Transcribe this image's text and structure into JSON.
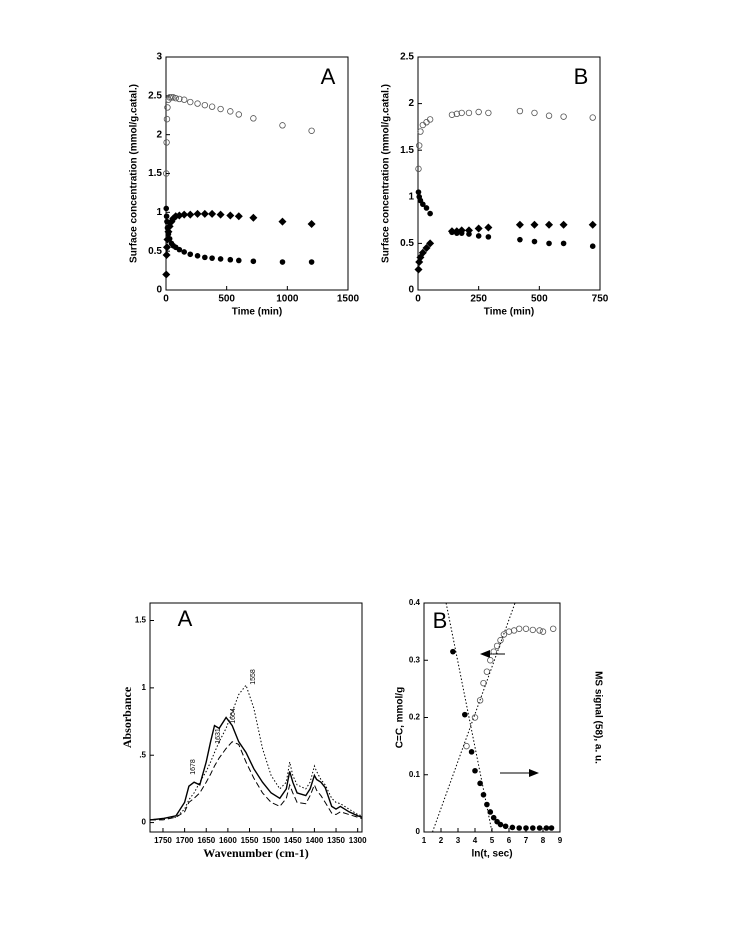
{
  "chart_data": [
    {
      "type": "scatter",
      "label": "A",
      "xlabel": "Time (min)",
      "ylabel": "Surface concentration (mmol/g.catal.)",
      "xlim": [
        0,
        1500
      ],
      "xticks": [
        0,
        500,
        1000,
        1500
      ],
      "ylim": [
        0,
        3
      ],
      "yticks": [
        0,
        0.5,
        1,
        1.5,
        2,
        2.5,
        3
      ],
      "x": [
        2,
        5,
        8,
        12,
        20,
        30,
        45,
        60,
        80,
        110,
        150,
        200,
        260,
        320,
        380,
        450,
        530,
        600,
        720,
        960,
        1200
      ],
      "series": [
        {
          "marker": "circle-open",
          "color": "#555555",
          "values": [
            1.5,
            1.9,
            2.2,
            2.35,
            2.45,
            2.48,
            2.48,
            2.48,
            2.47,
            2.46,
            2.45,
            2.42,
            2.4,
            2.38,
            2.36,
            2.33,
            2.3,
            2.26,
            2.21,
            2.12,
            2.05
          ]
        },
        {
          "marker": "diamond",
          "color": "#000000",
          "values": [
            0.2,
            0.45,
            0.55,
            0.65,
            0.75,
            0.82,
            0.88,
            0.92,
            0.95,
            0.96,
            0.97,
            0.97,
            0.98,
            0.98,
            0.98,
            0.97,
            0.96,
            0.95,
            0.93,
            0.88,
            0.85
          ]
        },
        {
          "marker": "circle",
          "color": "#000000",
          "values": [
            1.05,
            0.95,
            0.88,
            0.8,
            0.72,
            0.66,
            0.6,
            0.57,
            0.55,
            0.52,
            0.49,
            0.46,
            0.44,
            0.42,
            0.41,
            0.4,
            0.39,
            0.38,
            0.37,
            0.36,
            0.36
          ]
        }
      ]
    },
    {
      "type": "scatter",
      "label": "B",
      "xlabel": "Time (min)",
      "ylabel": "Surface concentration (mmol/g.catal.)",
      "xlim": [
        0,
        750
      ],
      "xticks": [
        0,
        250,
        500,
        750
      ],
      "ylim": [
        0,
        2.5
      ],
      "yticks": [
        0,
        0.5,
        1,
        1.5,
        2,
        2.5
      ],
      "x": [
        2,
        5,
        10,
        20,
        35,
        50,
        140,
        160,
        180,
        210,
        250,
        290,
        420,
        480,
        540,
        600,
        720
      ],
      "series": [
        {
          "marker": "circle-open",
          "color": "#555555",
          "values": [
            1.3,
            1.55,
            1.7,
            1.77,
            1.8,
            1.83,
            1.88,
            1.89,
            1.9,
            1.9,
            1.91,
            1.9,
            1.92,
            1.9,
            1.87,
            1.86,
            1.85
          ]
        },
        {
          "marker": "diamond",
          "color": "#000000",
          "values": [
            0.22,
            0.3,
            0.35,
            0.4,
            0.45,
            0.5,
            0.63,
            0.63,
            0.64,
            0.64,
            0.66,
            0.67,
            0.7,
            0.7,
            0.7,
            0.7,
            0.7
          ]
        },
        {
          "marker": "circle",
          "color": "#000000",
          "values": [
            1.05,
            1.0,
            0.96,
            0.92,
            0.88,
            0.82,
            0.62,
            0.61,
            0.61,
            0.6,
            0.58,
            0.57,
            0.54,
            0.52,
            0.5,
            0.5,
            0.47
          ]
        }
      ]
    },
    {
      "type": "line",
      "label": "A",
      "xlabel": "Wavenumber (cm-1)",
      "ylabel": "Absorbance",
      "xlim": [
        1780,
        1290
      ],
      "xticks": [
        1750,
        1700,
        1650,
        1600,
        1550,
        1500,
        1450,
        1400,
        1350,
        1300
      ],
      "ylim": [
        -0.07,
        1.63
      ],
      "yticks": [
        0,
        {
          "value": 0.5,
          "label": ".5"
        },
        1,
        1.5
      ],
      "annotations": [
        "1678",
        "1631",
        "1604",
        "1558"
      ],
      "x": [
        1780,
        1750,
        1720,
        1700,
        1690,
        1678,
        1665,
        1650,
        1640,
        1631,
        1620,
        1604,
        1590,
        1575,
        1558,
        1540,
        1520,
        1500,
        1480,
        1465,
        1457,
        1450,
        1440,
        1420,
        1410,
        1400,
        1395,
        1385,
        1375,
        1360,
        1350,
        1340,
        1320,
        1300,
        1290
      ],
      "series": [
        {
          "dash": "solid",
          "color": "#000000",
          "values": [
            0.02,
            0.03,
            0.05,
            0.15,
            0.27,
            0.3,
            0.28,
            0.45,
            0.6,
            0.72,
            0.7,
            0.78,
            0.72,
            0.6,
            0.52,
            0.4,
            0.3,
            0.22,
            0.18,
            0.25,
            0.38,
            0.3,
            0.22,
            0.2,
            0.25,
            0.35,
            0.32,
            0.3,
            0.26,
            0.12,
            0.1,
            0.12,
            0.08,
            0.05,
            0.04
          ]
        },
        {
          "dash": "dotted",
          "color": "#000000",
          "values": [
            0.02,
            0.03,
            0.04,
            0.1,
            0.17,
            0.22,
            0.3,
            0.38,
            0.45,
            0.52,
            0.6,
            0.7,
            0.82,
            0.95,
            1.02,
            0.85,
            0.55,
            0.35,
            0.25,
            0.3,
            0.45,
            0.35,
            0.28,
            0.25,
            0.3,
            0.42,
            0.38,
            0.32,
            0.28,
            0.18,
            0.15,
            0.14,
            0.1,
            0.06,
            0.05
          ]
        },
        {
          "dash": "dashed",
          "color": "#000000",
          "values": [
            0.02,
            0.02,
            0.04,
            0.08,
            0.15,
            0.18,
            0.22,
            0.3,
            0.36,
            0.42,
            0.48,
            0.55,
            0.6,
            0.58,
            0.45,
            0.33,
            0.22,
            0.15,
            0.12,
            0.18,
            0.28,
            0.22,
            0.15,
            0.14,
            0.2,
            0.28,
            0.24,
            0.2,
            0.15,
            0.07,
            0.06,
            0.08,
            0.06,
            0.04,
            0.03
          ]
        }
      ]
    },
    {
      "type": "scatter",
      "label": "B",
      "xlabel": "ln(t, sec)",
      "ylabel": "C=C, mmol/g",
      "y2label": "MS signal (58), a. u.",
      "xlim": [
        1,
        9
      ],
      "xticks": [
        1,
        2,
        3,
        4,
        5,
        6,
        7,
        8,
        9
      ],
      "ylim": [
        0,
        0.4
      ],
      "yticks": [
        0,
        0.1,
        0.2,
        0.3,
        0.4
      ],
      "series": [
        {
          "marker": "circle",
          "color": "#000000",
          "x": [
            2.7,
            3.4,
            3.8,
            4.0,
            4.3,
            4.5,
            4.7,
            4.9,
            5.1,
            5.3,
            5.5,
            5.8,
            6.2,
            6.6,
            7.0,
            7.4,
            7.8,
            8.2,
            8.5
          ],
          "values": [
            0.315,
            0.205,
            0.14,
            0.107,
            0.085,
            0.065,
            0.048,
            0.035,
            0.025,
            0.018,
            0.013,
            0.01,
            0.008,
            0.007,
            0.007,
            0.007,
            0.007,
            0.007,
            0.007
          ]
        },
        {
          "marker": "circle-open",
          "color": "#555555",
          "x": [
            3.5,
            4.0,
            4.3,
            4.5,
            4.7,
            4.9,
            5.1,
            5.3,
            5.5,
            5.7,
            6.0,
            6.3,
            6.6,
            7.0,
            7.4,
            7.8,
            8.0,
            8.6
          ],
          "values": [
            0.15,
            0.2,
            0.23,
            0.26,
            0.28,
            0.3,
            0.315,
            0.325,
            0.335,
            0.345,
            0.35,
            0.352,
            0.355,
            0.355,
            0.353,
            0.352,
            0.35,
            0.355
          ]
        },
        {
          "dash": "dotted",
          "color": "#000000",
          "x": [
            1.5,
            6.35
          ],
          "values": [
            0,
            0.4
          ]
        },
        {
          "dash": "dotted",
          "color": "#000000",
          "x": [
            2.3,
            5.0
          ],
          "values": [
            0.4,
            0
          ]
        }
      ]
    }
  ]
}
